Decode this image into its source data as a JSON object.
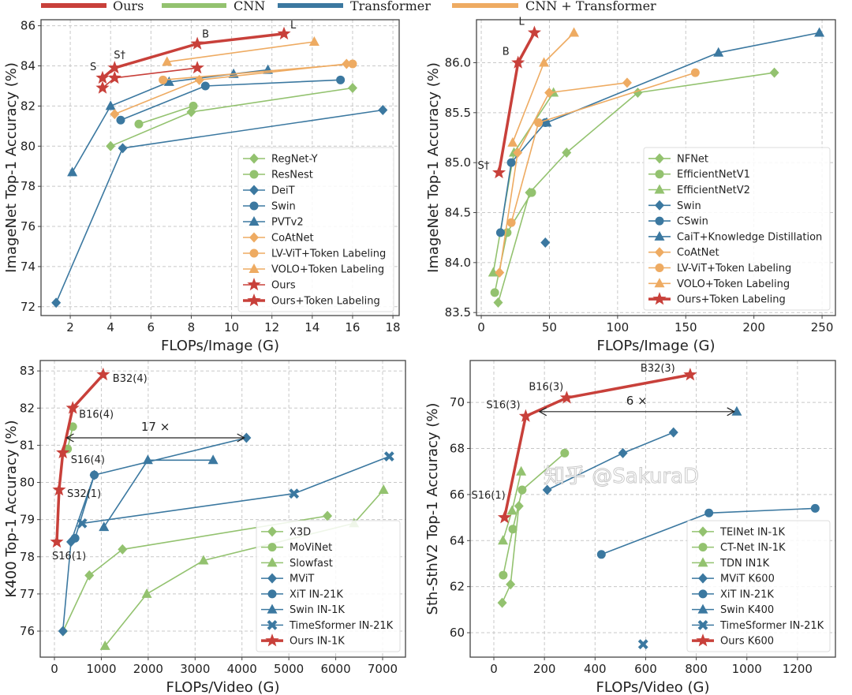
{
  "top_legend": [
    {
      "label": "Ours",
      "color": "#c8403a"
    },
    {
      "label": "CNN",
      "color": "#93c26f"
    },
    {
      "label": "Transformer",
      "color": "#3b78a0"
    },
    {
      "label": "CNN + Transformer",
      "color": "#eeab62"
    }
  ],
  "watermark": "知乎 @SakuraD",
  "chart_data": [
    {
      "type": "line",
      "xlabel": "FLOPs/Image (G)",
      "ylabel": "ImageNet Top-1 Accuracy (%)",
      "xlim": [
        0.55,
        18.31
      ],
      "ylim": [
        71.56,
        86.3
      ],
      "xticks": [
        "2",
        "4",
        "6",
        "8",
        "10",
        "12",
        "14",
        "16",
        "18"
      ],
      "yticks": [
        "72",
        "74",
        "76",
        "78",
        "80",
        "82",
        "84",
        "86"
      ],
      "grid": true,
      "legend": "lower-right",
      "series": [
        {
          "name": "RegNet-Y",
          "color": "#93c26f",
          "marker": "diamond",
          "points": [
            [
              4,
              80.0
            ],
            [
              8,
              81.7
            ],
            [
              16,
              82.9
            ]
          ]
        },
        {
          "name": "ResNest",
          "color": "#93c26f",
          "marker": "circle",
          "points": [
            [
              5.4,
              81.1
            ],
            [
              8.1,
              82.0
            ]
          ]
        },
        {
          "name": "DeiT",
          "color": "#3b78a0",
          "marker": "diamond",
          "points": [
            [
              1.3,
              72.2
            ],
            [
              4.6,
              79.9
            ],
            [
              17.5,
              81.8
            ]
          ]
        },
        {
          "name": "Swin",
          "color": "#3b78a0",
          "marker": "circle",
          "points": [
            [
              4.5,
              81.3
            ],
            [
              8.7,
              83.0
            ],
            [
              15.4,
              83.3
            ]
          ]
        },
        {
          "name": "PVTv2",
          "color": "#3b78a0",
          "marker": "triangle",
          "points": [
            [
              2.1,
              78.7
            ],
            [
              4.0,
              82.0
            ],
            [
              6.9,
              83.2
            ],
            [
              10.1,
              83.6
            ],
            [
              11.8,
              83.8
            ]
          ]
        },
        {
          "name": "CoAtNet",
          "color": "#eeab62",
          "marker": "diamond",
          "points": [
            [
              4.2,
              81.6
            ],
            [
              8.4,
              83.3
            ],
            [
              15.7,
              84.1
            ]
          ]
        },
        {
          "name": "LV-ViT+Token Labeling",
          "color": "#eeab62",
          "marker": "circle",
          "points": [
            [
              6.6,
              83.3
            ],
            [
              16.0,
              84.1
            ]
          ]
        },
        {
          "name": "VOLO+Token Labeling",
          "color": "#eeab62",
          "marker": "triangle",
          "points": [
            [
              6.8,
              84.2
            ],
            [
              14.1,
              85.2
            ]
          ]
        },
        {
          "name": "Ours",
          "color": "#c8403a",
          "marker": "star",
          "points": [
            [
              3.6,
              82.9
            ],
            [
              4.2,
              83.4
            ],
            [
              8.3,
              83.9
            ]
          ]
        },
        {
          "name": "Ours+Token Labeling",
          "color": "#c8403a",
          "marker": "star",
          "emphasis": true,
          "points": [
            [
              3.6,
              83.4
            ],
            [
              4.2,
              83.9
            ],
            [
              8.3,
              85.1
            ],
            [
              12.6,
              85.6
            ]
          ],
          "labels": [
            "S",
            "S†",
            "B",
            "L"
          ]
        }
      ],
      "annotations": []
    },
    {
      "type": "line",
      "xlabel": "FLOPs/Image (G)",
      "ylabel": "ImageNet Top-1 Accuracy (%)",
      "xlim": [
        -3.5,
        259.8
      ],
      "ylim": [
        83.47,
        86.43
      ],
      "xticks": [
        "0",
        "50",
        "100",
        "150",
        "200",
        "250"
      ],
      "yticks": [
        "83.5",
        "84.0",
        "84.5",
        "85.0",
        "85.5",
        "86.0"
      ],
      "grid": true,
      "legend": "lower-right",
      "series": [
        {
          "name": "NFNet",
          "color": "#93c26f",
          "marker": "diamond",
          "points": [
            [
              12.4,
              83.6
            ],
            [
              35.5,
              84.7
            ],
            [
              62.6,
              85.1
            ],
            [
              114.8,
              85.7
            ],
            [
              215,
              85.9
            ]
          ]
        },
        {
          "name": "EfficientNetV1",
          "color": "#93c26f",
          "marker": "circle",
          "points": [
            [
              9.9,
              83.7
            ],
            [
              19,
              84.3
            ],
            [
              37,
              84.7
            ]
          ]
        },
        {
          "name": "EfficientNetV2",
          "color": "#93c26f",
          "marker": "triangle",
          "points": [
            [
              8.8,
              83.9
            ],
            [
              24,
              85.1
            ],
            [
              53,
              85.7
            ]
          ]
        },
        {
          "name": "Swin",
          "color": "#3b78a0",
          "marker": "diamond",
          "points": [
            [
              47,
              84.2
            ]
          ]
        },
        {
          "name": "CSwin",
          "color": "#3b78a0",
          "marker": "circle",
          "points": [
            [
              14.1,
              84.3
            ],
            [
              22,
              85.0
            ],
            [
              47,
              85.4
            ]
          ]
        },
        {
          "name": "CaiT+Knowledge Distillation",
          "color": "#3b78a0",
          "marker": "triangle",
          "points": [
            [
              48,
              85.4
            ],
            [
              174,
              86.1
            ],
            [
              248,
              86.3
            ]
          ]
        },
        {
          "name": "CoAtNet",
          "color": "#eeab62",
          "marker": "diamond",
          "points": [
            [
              13.4,
              83.9
            ],
            [
              26.7,
              85.1
            ],
            [
              49.8,
              85.7
            ],
            [
              107,
              85.8
            ]
          ]
        },
        {
          "name": "LV-ViT+Token Labeling",
          "color": "#eeab62",
          "marker": "circle",
          "points": [
            [
              22,
              84.4
            ],
            [
              42,
              85.4
            ],
            [
              157,
              85.9
            ]
          ]
        },
        {
          "name": "VOLO+Token Labeling",
          "color": "#eeab62",
          "marker": "triangle",
          "points": [
            [
              23,
              85.2
            ],
            [
              46,
              86.0
            ],
            [
              68,
              86.3
            ]
          ]
        },
        {
          "name": "Ours+Token Labeling",
          "color": "#c8403a",
          "marker": "star",
          "emphasis": true,
          "points": [
            [
              13,
              84.9
            ],
            [
              27,
              86.0
            ],
            [
              39,
              86.3
            ]
          ],
          "labels": [
            "S†",
            "B",
            "L"
          ]
        }
      ],
      "annotations": []
    },
    {
      "type": "line",
      "xlabel": "FLOPs/Video (G)",
      "ylabel": "K400 Top-1 Accuracy (%)",
      "xlim": [
        -303,
        7488
      ],
      "ylim": [
        75.3,
        83.28
      ],
      "xticks": [
        "0",
        "1000",
        "2000",
        "3000",
        "4000",
        "5000",
        "6000",
        "7000"
      ],
      "yticks": [
        "76",
        "77",
        "78",
        "79",
        "80",
        "81",
        "82",
        "83"
      ],
      "grid": true,
      "legend": "lower-right",
      "series": [
        {
          "name": "X3D",
          "color": "#93c26f",
          "marker": "diamond",
          "points": [
            [
              186,
              76.0
            ],
            [
              744,
              77.5
            ],
            [
              1452,
              78.2
            ],
            [
              5823,
              79.1
            ]
          ]
        },
        {
          "name": "MoViNet",
          "color": "#93c26f",
          "marker": "circle",
          "points": [
            [
              280,
              80.9
            ],
            [
              390,
              81.5
            ]
          ]
        },
        {
          "name": "Slowfast",
          "color": "#93c26f",
          "marker": "triangle",
          "points": [
            [
              1080,
              75.6
            ],
            [
              1970,
              77.0
            ],
            [
              3180,
              77.9
            ],
            [
              6390,
              78.9
            ],
            [
              7020,
              79.8
            ]
          ]
        },
        {
          "name": "MViT",
          "color": "#3b78a0",
          "marker": "diamond",
          "points": [
            [
              180,
              76.0
            ],
            [
              353,
              78.4
            ],
            [
              850,
              80.2
            ],
            [
              4095,
              81.2
            ]
          ]
        },
        {
          "name": "XiT IN-21K",
          "color": "#3b78a0",
          "marker": "circle",
          "points": [
            [
              440,
              78.5
            ],
            [
              850,
              80.2
            ]
          ]
        },
        {
          "name": "Swin IN-1K",
          "color": "#3b78a0",
          "marker": "triangle",
          "points": [
            [
              1056,
              78.8
            ],
            [
              1992,
              80.6
            ],
            [
              3384,
              80.6
            ]
          ]
        },
        {
          "name": "TimeSformer IN-21K",
          "color": "#3b78a0",
          "marker": "x",
          "points": [
            [
              590,
              78.9
            ],
            [
              5110,
              79.7
            ],
            [
              7140,
              80.7
            ]
          ]
        },
        {
          "name": "Ours IN-1K",
          "color": "#c8403a",
          "marker": "star",
          "emphasis": true,
          "points": [
            [
              50,
              78.4
            ],
            [
              100,
              79.8
            ],
            [
              180,
              80.8
            ],
            [
              390,
              82.0
            ],
            [
              1040,
              82.9
            ]
          ],
          "labels": [
            "S16(1)",
            "S32(1)",
            "S16(4)",
            "B16(4)",
            "B32(4)"
          ]
        }
      ],
      "annotations": [
        {
          "text": "17 ×",
          "from": [
            260,
            81.2
          ],
          "to": [
            4050,
            81.2
          ]
        }
      ]
    },
    {
      "type": "line",
      "xlabel": "FLOPs/Video (G)",
      "ylabel": "Sth-SthV2 Top-1 Accuracy (%)",
      "xlim": [
        -93.5,
        1350
      ],
      "ylim": [
        58.94,
        71.82
      ],
      "xticks": [
        "0",
        "200",
        "400",
        "600",
        "800",
        "1000",
        "1200"
      ],
      "yticks": [
        "60",
        "62",
        "64",
        "66",
        "68",
        "70"
      ],
      "grid": true,
      "legend": "lower-right",
      "series": [
        {
          "name": "TEINet IN-1K",
          "color": "#93c26f",
          "marker": "diamond",
          "points": [
            [
              33,
              61.3
            ],
            [
              66,
              62.1
            ],
            [
              99,
              65.5
            ]
          ]
        },
        {
          "name": "CT-Net IN-1K",
          "color": "#93c26f",
          "marker": "circle",
          "points": [
            [
              37,
              62.5
            ],
            [
              75,
              64.5
            ],
            [
              112,
              66.2
            ],
            [
              280,
              67.8
            ]
          ]
        },
        {
          "name": "TDN IN1K",
          "color": "#93c26f",
          "marker": "triangle",
          "points": [
            [
              36,
              64.0
            ],
            [
              72,
              65.3
            ],
            [
              108,
              67.0
            ]
          ]
        },
        {
          "name": "MViT K600",
          "color": "#3b78a0",
          "marker": "diamond",
          "points": [
            [
              211,
              66.2
            ],
            [
              510,
              67.8
            ],
            [
              710,
              68.7
            ]
          ]
        },
        {
          "name": "XiT IN-21K",
          "color": "#3b78a0",
          "marker": "circle",
          "points": [
            [
              425,
              63.4
            ],
            [
              850,
              65.2
            ],
            [
              1270,
              65.4
            ]
          ]
        },
        {
          "name": "Swin K400",
          "color": "#3b78a0",
          "marker": "triangle",
          "points": [
            [
              960,
              69.6
            ]
          ]
        },
        {
          "name": "TimeSformer IN-21K",
          "color": "#3b78a0",
          "marker": "x",
          "points": [
            [
              590,
              59.5
            ]
          ]
        },
        {
          "name": "Ours K600",
          "color": "#c8403a",
          "marker": "star",
          "emphasis": true,
          "points": [
            [
              42,
              65.0
            ],
            [
              126,
              69.4
            ],
            [
              288,
              70.2
            ],
            [
              776,
              71.2
            ]
          ],
          "labels": [
            "S16(1)",
            "S16(3)",
            "B16(3)",
            "B32(3)"
          ]
        }
      ],
      "annotations": [
        {
          "text": "6 ×",
          "from": [
            180,
            69.6
          ],
          "to": [
            950,
            69.6
          ]
        }
      ]
    }
  ]
}
